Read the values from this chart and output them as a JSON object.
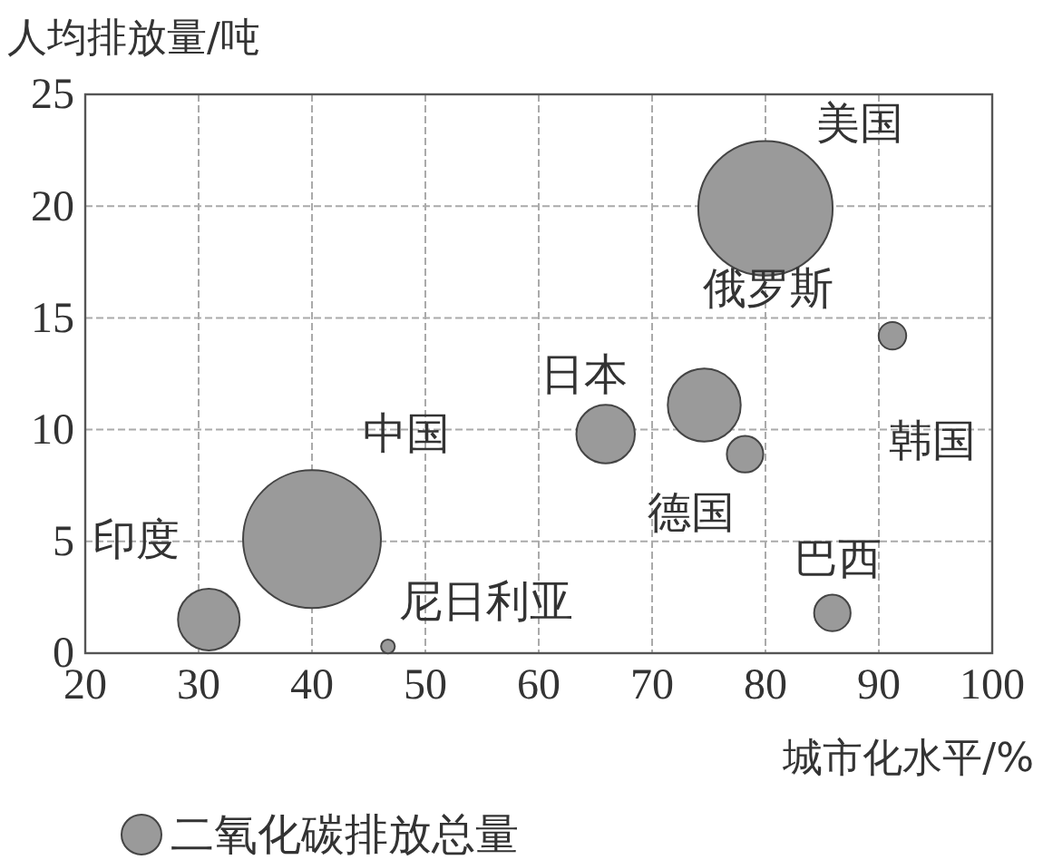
{
  "chart_data": {
    "type": "bubble",
    "ylabel": "人均排放量/吨",
    "xlabel": "城市化水平/%",
    "x": [
      30.9,
      40,
      46.7,
      65.9,
      74.6,
      78.2,
      80,
      91.2,
      85.9
    ],
    "series": [
      {
        "name": "二氧化碳排放总量",
        "color": "#9a9a9a",
        "values": [
          1.5,
          5.1,
          0.3,
          9.8,
          11.1,
          8.9,
          19.9,
          14.2,
          1.8
        ],
        "sizes": [
          0.2,
          1,
          0.01,
          0.18,
          0.28,
          0.07,
          0.95,
          0.04,
          0.07
        ]
      }
    ],
    "annotations": [
      {
        "text": "印度",
        "x": 30.9,
        "y": 1.5
      },
      {
        "text": "中国",
        "x": 40,
        "y": 5.1
      },
      {
        "text": "尼日利亚",
        "x": 46.7,
        "y": 0.3
      },
      {
        "text": "日本",
        "x": 65.9,
        "y": 9.8
      },
      {
        "text": "俄罗斯",
        "x": 74.6,
        "y": 11.1
      },
      {
        "text": "德国",
        "x": 78.2,
        "y": 8.9
      },
      {
        "text": "美国",
        "x": 80,
        "y": 19.9
      },
      {
        "text": "韩国",
        "x": 91.2,
        "y": 14.2
      },
      {
        "text": "巴西",
        "x": 85.9,
        "y": 1.8
      }
    ],
    "xlim": [
      20,
      100
    ],
    "xticks": [
      20,
      30,
      40,
      50,
      60,
      70,
      80,
      90,
      100
    ],
    "ylim": [
      0,
      25
    ],
    "yticks": [
      0,
      5,
      10,
      15,
      20,
      25
    ],
    "grid": true,
    "legend": "bottom"
  }
}
